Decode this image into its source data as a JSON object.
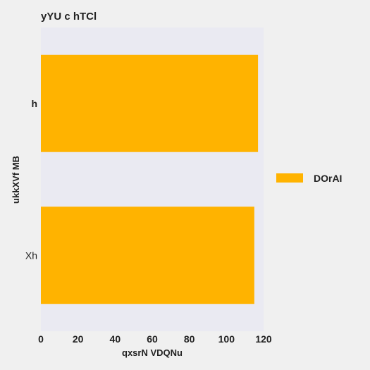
{
  "chart_data": {
    "type": "bar",
    "orientation": "horizontal",
    "title": "yYU  c hTCl",
    "xlabel": "qxsrN VDQNu",
    "ylabel": "ukkXVf MB",
    "categories": [
      "h",
      "Xh"
    ],
    "category_label_bold": [
      true,
      false
    ],
    "series": [
      {
        "name": "DOrAI",
        "values": [
          117,
          115
        ],
        "color": "#ffb300"
      }
    ],
    "xlim": [
      0,
      120
    ],
    "xticks": [
      0,
      20,
      40,
      60,
      80,
      100,
      120
    ],
    "plot_background": "#eaeaf2",
    "page_background": "#f0f0f0",
    "grid": false,
    "legend_position": "right"
  }
}
